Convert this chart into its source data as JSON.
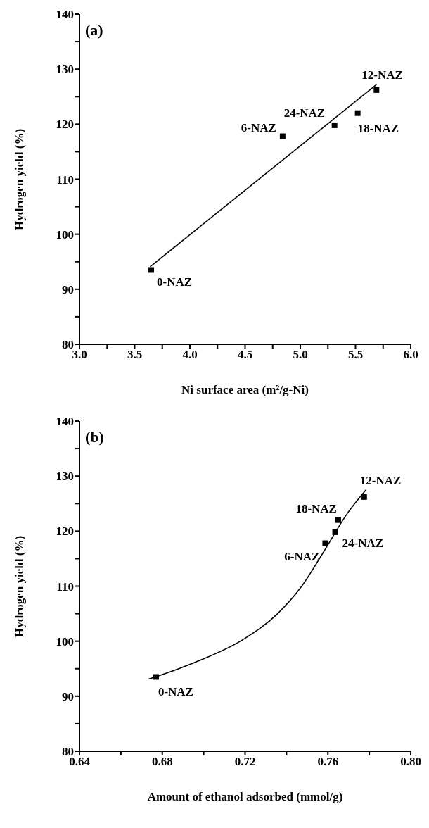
{
  "chart_data": [
    {
      "type": "scatter",
      "title": "(a)",
      "xlabel": "Ni surface area (m²/g-Ni)",
      "ylabel": "Hydrogen yield (%)",
      "xlim": [
        3,
        6
      ],
      "xticks": [
        {
          "value": 3,
          "label": "3.0"
        },
        {
          "value": 3.25,
          "label": null
        },
        {
          "value": 3.5,
          "label": "3.5"
        },
        {
          "value": 3.75,
          "label": null
        },
        {
          "value": 4,
          "label": "4.0"
        },
        {
          "value": 4.25,
          "label": null
        },
        {
          "value": 4.5,
          "label": "4.5"
        },
        {
          "value": 4.75,
          "label": null
        },
        {
          "value": 5,
          "label": "5.0"
        },
        {
          "value": 5.25,
          "label": null
        },
        {
          "value": 5.5,
          "label": "5.5"
        },
        {
          "value": 5.75,
          "label": null
        },
        {
          "value": 6,
          "label": "6.0"
        }
      ],
      "ylim": [
        80,
        140
      ],
      "yticks": [
        80,
        {
          "value": 85,
          "label": null
        },
        90,
        {
          "value": 95,
          "label": null
        },
        100,
        {
          "value": 105,
          "label": null
        },
        110,
        {
          "value": 115,
          "label": null
        },
        120,
        {
          "value": 125,
          "label": null
        },
        130,
        {
          "value": 135,
          "label": null
        },
        140
      ],
      "grid": false,
      "marker": "square",
      "series": [
        {
          "color": "#000000",
          "x": [
            3.65,
            4.84,
            5.69,
            5.52,
            5.31
          ],
          "values": [
            93.5,
            117.8,
            126.2,
            122.0,
            119.8
          ]
        },
        {
          "type": "line",
          "color": "#000000",
          "marker": "none",
          "x": [
            3.64,
            5.69
          ],
          "values": [
            94.1,
            127.2
          ]
        }
      ],
      "annotations": [
        {
          "text": "0-NAZ",
          "x": 3.65,
          "y": 93.5
        },
        {
          "text": "6-NAZ",
          "x": 4.84,
          "y": 117.8
        },
        {
          "text": "12-NAZ",
          "x": 5.69,
          "y": 126.2
        },
        {
          "text": "18-NAZ",
          "x": 5.52,
          "y": 122.0
        },
        {
          "text": "24-NAZ",
          "x": 5.31,
          "y": 119.8
        }
      ]
    },
    {
      "type": "scatter",
      "title": "(b)",
      "xlabel": "Amount of ethanol adsorbed (mmol/g)",
      "ylabel": "Hydrogen yield (%)",
      "xlim": [
        0.64,
        0.8
      ],
      "xticks": [
        0.64,
        {
          "value": 0.66,
          "label": null
        },
        0.68,
        {
          "value": 0.7,
          "label": null
        },
        0.72,
        {
          "value": 0.74,
          "label": null
        },
        0.76,
        {
          "value": 0.78,
          "label": null
        },
        {
          "value": 0.8,
          "label": "0.80"
        }
      ],
      "ylim": [
        80,
        140
      ],
      "yticks": [
        80,
        {
          "value": 85,
          "label": null
        },
        90,
        {
          "value": 95,
          "label": null
        },
        100,
        {
          "value": 105,
          "label": null
        },
        110,
        {
          "value": 115,
          "label": null
        },
        120,
        {
          "value": 125,
          "label": null
        },
        130,
        {
          "value": 135,
          "label": null
        },
        140
      ],
      "grid": false,
      "marker": "square",
      "series": [
        {
          "color": "#000000",
          "x": [
            0.677,
            0.7587,
            0.7775,
            0.765,
            0.7635
          ],
          "values": [
            93.5,
            117.8,
            126.2,
            122.0,
            119.8
          ]
        },
        {
          "type": "line",
          "color": "#000000",
          "marker": "none",
          "x": [
            0.6734,
            0.6968,
            0.719,
            0.7357,
            0.7468,
            0.7579,
            0.769,
            0.7784
          ],
          "values": [
            93.1,
            96.3,
            100.3,
            105.0,
            109.7,
            116.2,
            123.0,
            127.5
          ]
        }
      ],
      "annotations": [
        {
          "text": "0-NAZ",
          "x": 0.677,
          "y": 93.5
        },
        {
          "text": "6-NAZ",
          "x": 0.7587,
          "y": 117.8
        },
        {
          "text": "12-NAZ",
          "x": 0.7775,
          "y": 126.2
        },
        {
          "text": "18-NAZ",
          "x": 0.765,
          "y": 122.0
        },
        {
          "text": "24-NAZ",
          "x": 0.7635,
          "y": 119.8
        }
      ]
    }
  ]
}
